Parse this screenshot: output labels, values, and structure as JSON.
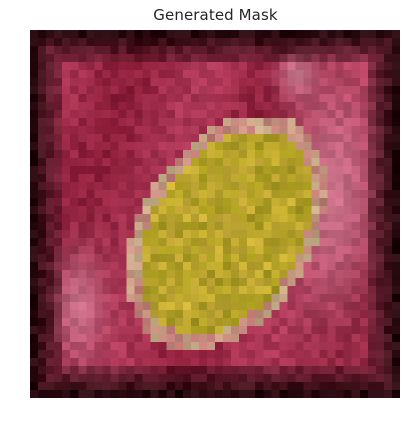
{
  "figure": {
    "title": "Generated Mask"
  },
  "image": {
    "content": "pixelated-flower-photo",
    "grid": [
      46,
      46
    ],
    "palette": {
      "border": "#1a0508",
      "petal_deep": "#8e1f3b",
      "petal": "#b33c5c",
      "petal_light": "#d27f96",
      "center_yellow": "#c9b330",
      "center_dark": "#8a7a1e",
      "pollen_rim": "#c7b08a"
    }
  }
}
